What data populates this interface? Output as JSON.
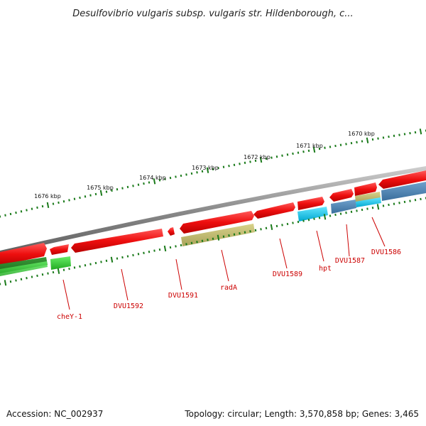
{
  "header": {
    "title": "Desulfovibrio vulgaris subsp. vulgaris str. Hildenborough, c..."
  },
  "footer": {
    "accession": "Accession: NC_002937",
    "summary": "Topology: circular; Length: 3,570,858 bp; Genes: 3,465"
  },
  "scale": {
    "ticks": [
      "1676 kbp",
      "1675 kbp",
      "1674 kbp",
      "1673 kbp",
      "1672 kbp",
      "1671 kbp",
      "1670 kbp"
    ]
  },
  "genes": {
    "labels": [
      "cheY-1",
      "DVU1592",
      "DVU1591",
      "radA",
      "DVU1589",
      "hpt",
      "DVU1587",
      "DVU1586"
    ]
  },
  "colors": {
    "cds_red": "#ee1111",
    "cog_green": "#33cc33",
    "cog_dark_green": "#228822",
    "cog_khaki": "#bdb76b",
    "cog_cyan": "#00ccee",
    "cog_steel_blue": "#4682b4",
    "backbone_gray": "#888888",
    "tick_green": "#1a7a1a",
    "label_red": "#cc0000"
  }
}
